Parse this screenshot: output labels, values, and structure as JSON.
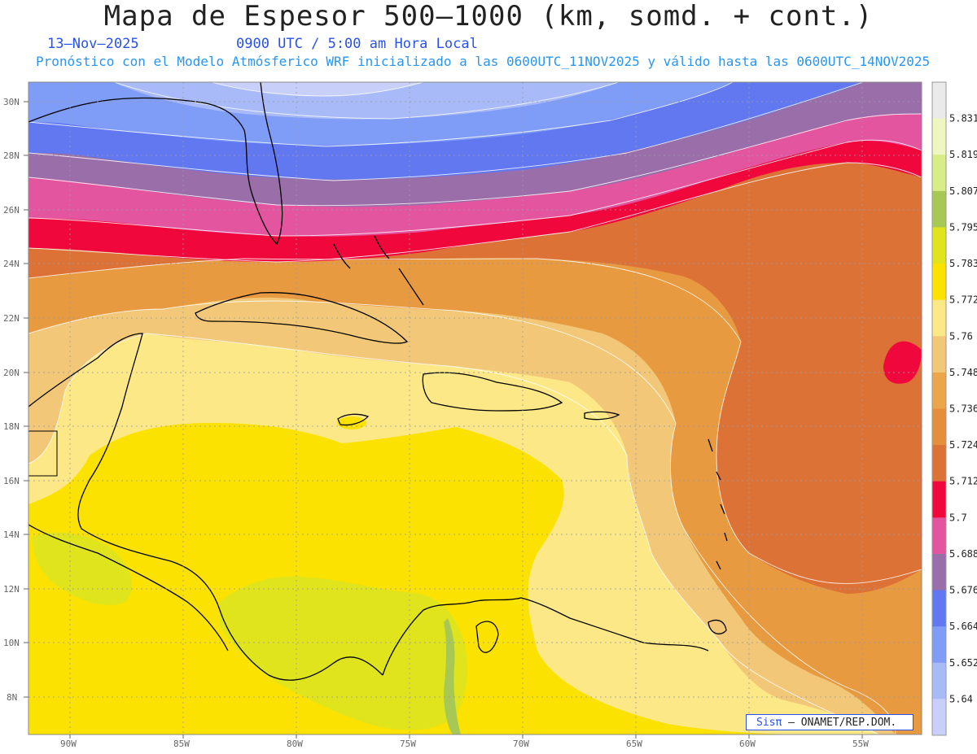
{
  "header": {
    "title": "Mapa de Espesor 500–1000 (km, somd. + cont.)",
    "date": "13–Nov–2025",
    "time": "0900 UTC / 5:00 am Hora Local",
    "subtitle": "Pronóstico con el Modelo Atmósferico WRF inicializado a las 0600UTC_11NOV2025 y válido hasta las  0600UTC_14NOV2025"
  },
  "axes": {
    "lat_labels": [
      "30N",
      "28N",
      "26N",
      "24N",
      "22N",
      "20N",
      "18N",
      "16N",
      "14N",
      "12N",
      "10N",
      "8N"
    ],
    "lon_labels": [
      "90W",
      "85W",
      "80W",
      "75W",
      "70W",
      "65W",
      "60W",
      "55W"
    ]
  },
  "colorbar": {
    "levels": [
      "5.64",
      "5.652",
      "5.664",
      "5.676",
      "5.688",
      "5.7",
      "5.712",
      "5.724",
      "5.736",
      "5.748",
      "5.76",
      "5.772",
      "5.783",
      "5.795",
      "5.807",
      "5.819",
      "5.831"
    ],
    "colors": [
      "#c8d0fa",
      "#a9baf8",
      "#7f9cf6",
      "#6178f0",
      "#9a6ea8",
      "#e455a0",
      "#f0083c",
      "#dc7236",
      "#e58e3c",
      "#eba64c",
      "#f2c878",
      "#fde888",
      "#fbe200",
      "#dfe41c",
      "#a8c856",
      "#d8ec88",
      "#f0f6c2",
      "#eaeaea"
    ]
  },
  "credit": {
    "sis": "Sisπ",
    "text": " – ONAMET/REP.DOM."
  }
}
